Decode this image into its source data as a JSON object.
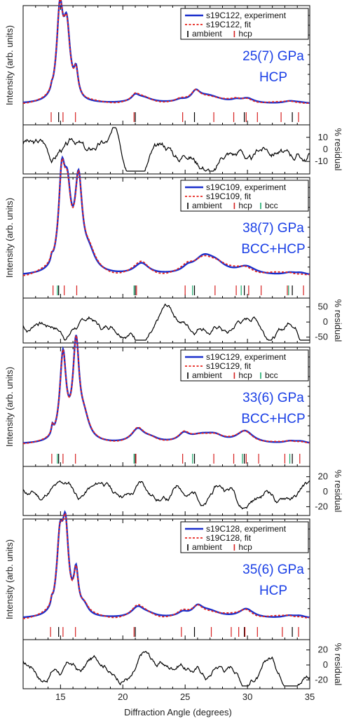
{
  "colors": {
    "experiment": "#1a2fcc",
    "fit": "#e8231c",
    "ambient": "#000000",
    "hcp": "#d62020",
    "bcc": "#1aaa6a",
    "condition_text": "#1a3fe6",
    "axis": "#000000"
  },
  "xlabel": "Diffraction Angle (degrees)",
  "ylabel": "Intensity (arb. units)",
  "residual_label": "% residual",
  "x_ticks": [
    "15",
    "20",
    "25",
    "30",
    "35"
  ],
  "chart_data": [
    {
      "type": "line",
      "xlim": [
        12,
        35
      ],
      "legend": {
        "placement": "top-right",
        "experiment": "s19C122, experiment",
        "fit": "s19C122, fit",
        "ticks": [
          "ambient",
          "hcp"
        ]
      },
      "condition": [
        "25(7) GPa",
        "HCP"
      ],
      "peaks": [
        [
          14.3,
          0.07,
          0.03
        ],
        [
          14.95,
          0.3,
          0.78
        ],
        [
          15.5,
          0.33,
          0.62
        ],
        [
          16.25,
          0.2,
          0.22
        ],
        [
          21.0,
          0.35,
          0.05
        ],
        [
          21.6,
          0.9,
          0.05
        ],
        [
          24.6,
          0.45,
          0.02
        ],
        [
          25.85,
          0.4,
          0.08
        ],
        [
          26.8,
          1.3,
          0.07
        ],
        [
          29.1,
          0.45,
          0.02
        ],
        [
          30.0,
          0.6,
          0.04
        ],
        [
          33.4,
          0.6,
          0.02
        ],
        [
          34.2,
          0.7,
          0.01
        ]
      ],
      "baseline": 0.01,
      "fit_dy": -0.008,
      "ticks": {
        "ambient": [
          14.85,
          21.0,
          25.75,
          29.75,
          33.6
        ],
        "hcp": [
          14.25,
          15.2,
          16.2,
          20.9,
          24.8,
          27.3,
          28.9,
          29.9,
          30.8,
          32.7,
          34.1
        ],
        "bcc": []
      },
      "residual": {
        "ticks": [
          10,
          0,
          -10
        ],
        "range": [
          -18,
          18
        ],
        "amplitude": 10,
        "seed": 3
      }
    },
    {
      "type": "line",
      "xlim": [
        12,
        35
      ],
      "legend": {
        "placement": "top-right",
        "experiment": "s19C109, experiment",
        "fit": "s19C109, fit",
        "ticks": [
          "ambient",
          "hcp",
          "bcc"
        ]
      },
      "condition": [
        "38(7) GPa",
        "BCC+HCP"
      ],
      "peaks": [
        [
          14.3,
          0.1,
          0.05
        ],
        [
          15.1,
          0.3,
          0.75
        ],
        [
          15.55,
          0.35,
          0.6
        ],
        [
          16.45,
          0.35,
          0.78
        ],
        [
          17.3,
          0.6,
          0.15
        ],
        [
          21.5,
          0.7,
          0.1
        ],
        [
          25.2,
          0.5,
          0.04
        ],
        [
          26.5,
          1.0,
          0.15
        ],
        [
          27.5,
          0.9,
          0.07
        ],
        [
          29.9,
          0.9,
          0.07
        ],
        [
          33.4,
          0.6,
          0.02
        ],
        [
          34.3,
          0.6,
          0.02
        ]
      ],
      "baseline": 0.02,
      "fit_dy": -0.015,
      "ticks": {
        "ambient": [
          14.85,
          21.0,
          25.75,
          29.75,
          33.6
        ],
        "hcp": [
          14.4,
          15.3,
          16.3,
          21.1,
          25.0,
          27.4,
          29.1,
          30.1,
          31.1,
          33.2,
          34.5
        ],
        "bcc": [
          14.75,
          20.9,
          25.6,
          29.5,
          33.3
        ]
      },
      "residual": {
        "ticks": [
          50,
          0,
          -50
        ],
        "range": [
          -60,
          70
        ],
        "amplitude": 30,
        "seed": 7
      }
    },
    {
      "type": "line",
      "xlim": [
        12,
        35
      ],
      "legend": {
        "placement": "top-right",
        "experiment": "s19C129, experiment",
        "fit": "s19C129, fit",
        "ticks": [
          "ambient",
          "hcp",
          "bcc"
        ]
      },
      "condition": [
        "33(6) GPa",
        "BCC+HCP"
      ],
      "peaks": [
        [
          14.35,
          0.1,
          0.08
        ],
        [
          15.2,
          0.3,
          0.78
        ],
        [
          16.25,
          0.3,
          0.86
        ],
        [
          16.9,
          0.5,
          0.18
        ],
        [
          21.2,
          0.6,
          0.12
        ],
        [
          22.2,
          0.8,
          0.04
        ],
        [
          24.9,
          0.5,
          0.07
        ],
        [
          26.3,
          1.2,
          0.07
        ],
        [
          27.4,
          0.8,
          0.05
        ],
        [
          29.8,
          0.8,
          0.11
        ],
        [
          33.4,
          0.6,
          0.02
        ],
        [
          34.3,
          0.6,
          0.02
        ]
      ],
      "baseline": 0.02,
      "fit_dy": -0.006,
      "ticks": {
        "ambient": [
          14.85,
          21.0,
          25.75,
          29.75,
          33.6
        ],
        "hcp": [
          14.3,
          15.2,
          16.2,
          21.05,
          24.8,
          27.3,
          28.9,
          29.9,
          30.9,
          33.0,
          34.2
        ],
        "bcc": [
          14.75,
          20.9,
          25.6,
          29.6,
          33.4
        ]
      },
      "residual": {
        "ticks": [
          20,
          0,
          -20
        ],
        "range": [
          -28,
          30
        ],
        "amplitude": 12,
        "seed": 11
      }
    },
    {
      "type": "line",
      "xlim": [
        12,
        35
      ],
      "legend": {
        "placement": "top-right",
        "experiment": "s19C128, experiment",
        "fit": "s19C128, fit",
        "ticks": [
          "ambient",
          "hcp"
        ]
      },
      "condition": [
        "35(6) GPa",
        "HCP"
      ],
      "peaks": [
        [
          14.3,
          0.08,
          0.05
        ],
        [
          14.95,
          0.3,
          0.62
        ],
        [
          15.4,
          0.3,
          0.72
        ],
        [
          16.25,
          0.22,
          0.35
        ],
        [
          16.9,
          0.4,
          0.08
        ],
        [
          21.2,
          0.6,
          0.09
        ],
        [
          22.0,
          0.8,
          0.03
        ],
        [
          24.8,
          0.5,
          0.04
        ],
        [
          26.0,
          0.5,
          0.08
        ],
        [
          26.9,
          1.1,
          0.06
        ],
        [
          29.9,
          0.7,
          0.08
        ],
        [
          33.3,
          0.6,
          0.02
        ],
        [
          34.2,
          0.6,
          0.02
        ]
      ],
      "baseline": 0.01,
      "fit_dy": -0.012,
      "ticks": {
        "ambient": [
          14.85,
          21.0,
          25.75,
          29.75,
          33.6
        ],
        "hcp": [
          14.2,
          15.2,
          16.2,
          20.9,
          24.7,
          27.1,
          28.7,
          29.3,
          29.8,
          30.8,
          32.8,
          34.1
        ],
        "bcc": []
      },
      "residual": {
        "ticks": [
          20,
          0,
          -20
        ],
        "range": [
          -28,
          30
        ],
        "amplitude": 13,
        "seed": 17
      }
    }
  ]
}
